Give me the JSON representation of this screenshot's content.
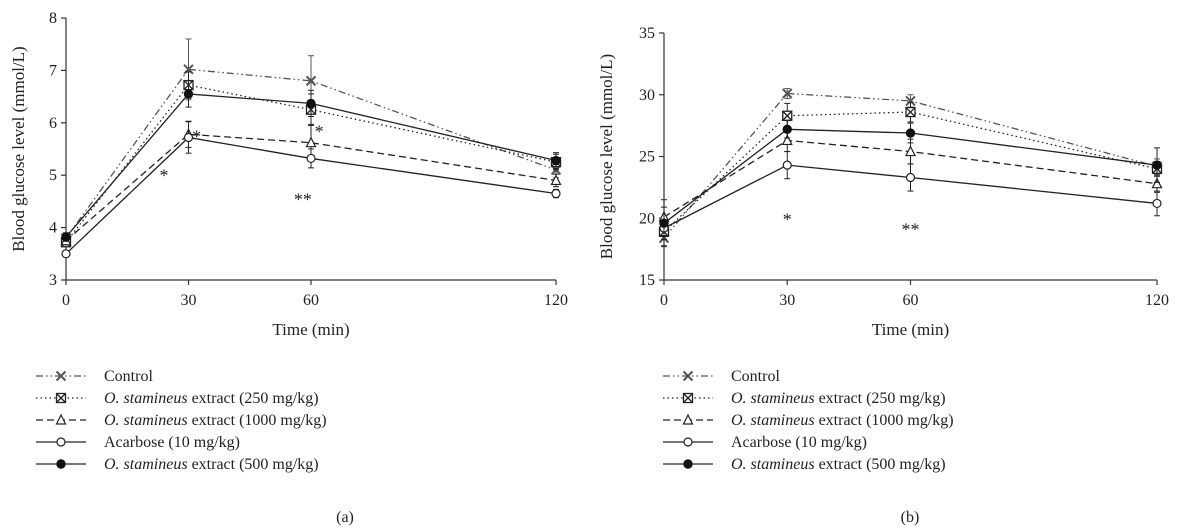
{
  "chart_data": [
    {
      "panel_label": "(a)",
      "type": "line",
      "xlabel": "Time (min)",
      "ylabel": "Blood glucose level (mmol/L)",
      "x": [
        0,
        30,
        60,
        120
      ],
      "x_tick_labels": [
        "0",
        "30",
        "60",
        "120"
      ],
      "ylim": [
        3,
        8
      ],
      "y_ticks": [
        3,
        4,
        5,
        6,
        7,
        8
      ],
      "series": [
        {
          "name": "Control",
          "style": "dash-dot-dot",
          "marker": "x",
          "values": [
            3.8,
            7.02,
            6.8,
            5.1
          ],
          "errors": [
            0.1,
            0.58,
            0.48,
            0.15
          ]
        },
        {
          "name": "O. stamineus extract (250 mg/kg)",
          "style": "dotted",
          "marker": "boxed-x",
          "values": [
            3.72,
            6.72,
            6.25,
            5.25
          ],
          "errors": [
            0.08,
            0.25,
            0.3,
            0.15
          ]
        },
        {
          "name": "O. stamineus extract (1000 mg/kg)",
          "style": "dashed",
          "marker": "open-triangle",
          "values": [
            3.75,
            5.78,
            5.62,
            4.9
          ],
          "errors": [
            0.08,
            0.25,
            0.35,
            0.12
          ]
        },
        {
          "name": "Acarbose (10 mg/kg)",
          "style": "solid",
          "marker": "open-circle",
          "values": [
            3.5,
            5.72,
            5.32,
            4.65
          ],
          "errors": [
            0.06,
            0.3,
            0.18,
            0.08
          ]
        },
        {
          "name": "O. stamineus extract (500 mg/kg)",
          "style": "solid",
          "marker": "filled-circle",
          "values": [
            3.82,
            6.55,
            6.37,
            5.28
          ],
          "errors": [
            0.08,
            0.25,
            0.25,
            0.15
          ]
        }
      ],
      "annotations": [
        {
          "text": "*",
          "x": 24,
          "y": 4.88
        },
        {
          "text": "*",
          "x": 32,
          "y": 5.62
        },
        {
          "text": "*",
          "x": 62,
          "y": 5.72
        },
        {
          "text": "**",
          "x": 58,
          "y": 4.42
        }
      ]
    },
    {
      "panel_label": "(b)",
      "type": "line",
      "xlabel": "Time (min)",
      "ylabel": "Blood glucose level (mmol/L)",
      "x": [
        0,
        30,
        60,
        120
      ],
      "x_tick_labels": [
        "0",
        "30",
        "60",
        "120"
      ],
      "ylim": [
        15,
        35
      ],
      "y_ticks": [
        15,
        20,
        25,
        30,
        35
      ],
      "series": [
        {
          "name": "Control",
          "style": "dash-dot-dot",
          "marker": "x",
          "values": [
            18.4,
            30.1,
            29.5,
            24.2
          ],
          "errors": [
            0.6,
            0.4,
            0.5,
            0.6
          ]
        },
        {
          "name": "O. stamineus extract (250 mg/kg)",
          "style": "dotted",
          "marker": "boxed-x",
          "values": [
            18.9,
            28.3,
            28.6,
            24.0
          ],
          "errors": [
            0.6,
            1.0,
            0.8,
            0.6
          ]
        },
        {
          "name": "O. stamineus extract (1000 mg/kg)",
          "style": "dashed",
          "marker": "open-triangle",
          "values": [
            20.1,
            26.3,
            25.4,
            22.8
          ],
          "errors": [
            0.8,
            0.9,
            1.0,
            0.7
          ]
        },
        {
          "name": "Acarbose (10 mg/kg)",
          "style": "solid",
          "marker": "open-circle",
          "values": [
            19.2,
            24.3,
            23.3,
            21.2
          ],
          "errors": [
            0.6,
            1.1,
            1.1,
            1.0
          ]
        },
        {
          "name": "O. stamineus extract (500 mg/kg)",
          "style": "solid",
          "marker": "filled-circle",
          "values": [
            19.6,
            27.2,
            26.9,
            24.3
          ],
          "errors": [
            1.9,
            0.7,
            0.8,
            1.4
          ]
        }
      ],
      "annotations": [
        {
          "text": "*",
          "x": 30,
          "y": 19.4
        },
        {
          "text": "**",
          "x": 60,
          "y": 18.6
        }
      ]
    }
  ]
}
